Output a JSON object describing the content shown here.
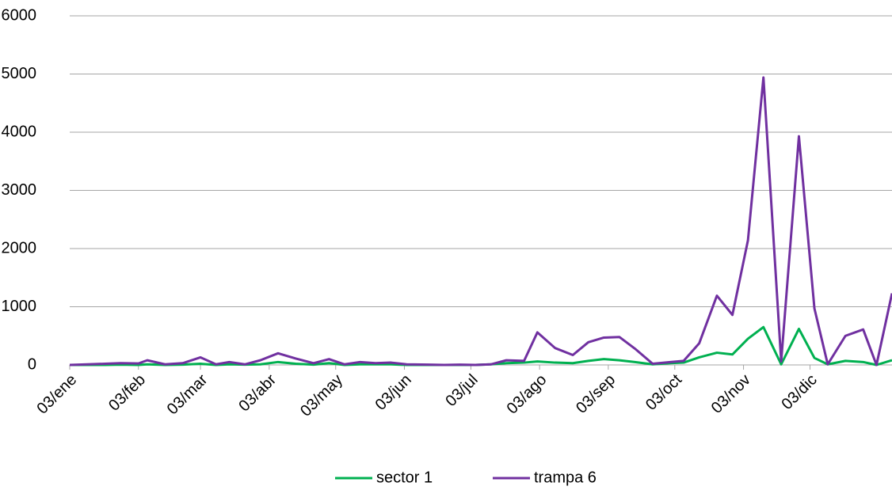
{
  "chart_data": {
    "type": "line",
    "x": [
      0,
      8,
      16,
      23,
      31,
      35,
      43,
      51,
      59,
      66,
      72,
      79,
      86,
      94,
      102,
      110,
      117,
      124,
      131,
      138,
      145,
      152,
      162,
      169,
      176,
      183,
      190,
      197,
      205,
      211,
      219,
      227,
      234,
      241,
      248,
      255,
      263,
      271,
      277,
      284,
      292,
      299,
      306,
      313,
      321,
      329,
      336,
      342,
      350,
      358,
      364,
      371
    ],
    "series": [
      {
        "name": "sector 1",
        "color": "#00b050",
        "values": [
          0,
          0,
          0,
          5,
          0,
          10,
          0,
          5,
          20,
          0,
          10,
          5,
          10,
          50,
          20,
          5,
          30,
          0,
          10,
          10,
          10,
          0,
          0,
          0,
          0,
          0,
          10,
          30,
          40,
          60,
          40,
          30,
          70,
          100,
          80,
          50,
          10,
          30,
          40,
          130,
          210,
          180,
          450,
          650,
          10,
          620,
          120,
          10,
          70,
          50,
          0,
          80
        ]
      },
      {
        "name": "trampa 6",
        "color": "#7030a0",
        "values": [
          0,
          10,
          20,
          30,
          25,
          80,
          10,
          30,
          130,
          10,
          50,
          10,
          80,
          200,
          110,
          30,
          100,
          10,
          50,
          30,
          40,
          10,
          5,
          0,
          5,
          0,
          10,
          80,
          70,
          560,
          290,
          170,
          390,
          470,
          480,
          280,
          20,
          50,
          70,
          370,
          1190,
          860,
          2140,
          4940,
          60,
          3930,
          970,
          10,
          500,
          610,
          0,
          1230
        ]
      }
    ],
    "xlim": [
      0,
      371
    ],
    "xticks": [
      {
        "value": 0,
        "label": "03/ene"
      },
      {
        "value": 31,
        "label": "03/feb"
      },
      {
        "value": 59,
        "label": "03/mar"
      },
      {
        "value": 90,
        "label": "03/abr"
      },
      {
        "value": 120,
        "label": "03/may"
      },
      {
        "value": 151,
        "label": "03/jun"
      },
      {
        "value": 181,
        "label": "03/jul"
      },
      {
        "value": 212,
        "label": "03/ago"
      },
      {
        "value": 243,
        "label": "03/sep"
      },
      {
        "value": 273,
        "label": "03/oct"
      },
      {
        "value": 304,
        "label": "03/nov"
      },
      {
        "value": 334,
        "label": "03/dic"
      }
    ],
    "ylim": [
      0,
      6000
    ],
    "yticks": [
      0,
      1000,
      2000,
      3000,
      4000,
      5000,
      6000
    ],
    "grid": true,
    "legend": "bottom"
  }
}
